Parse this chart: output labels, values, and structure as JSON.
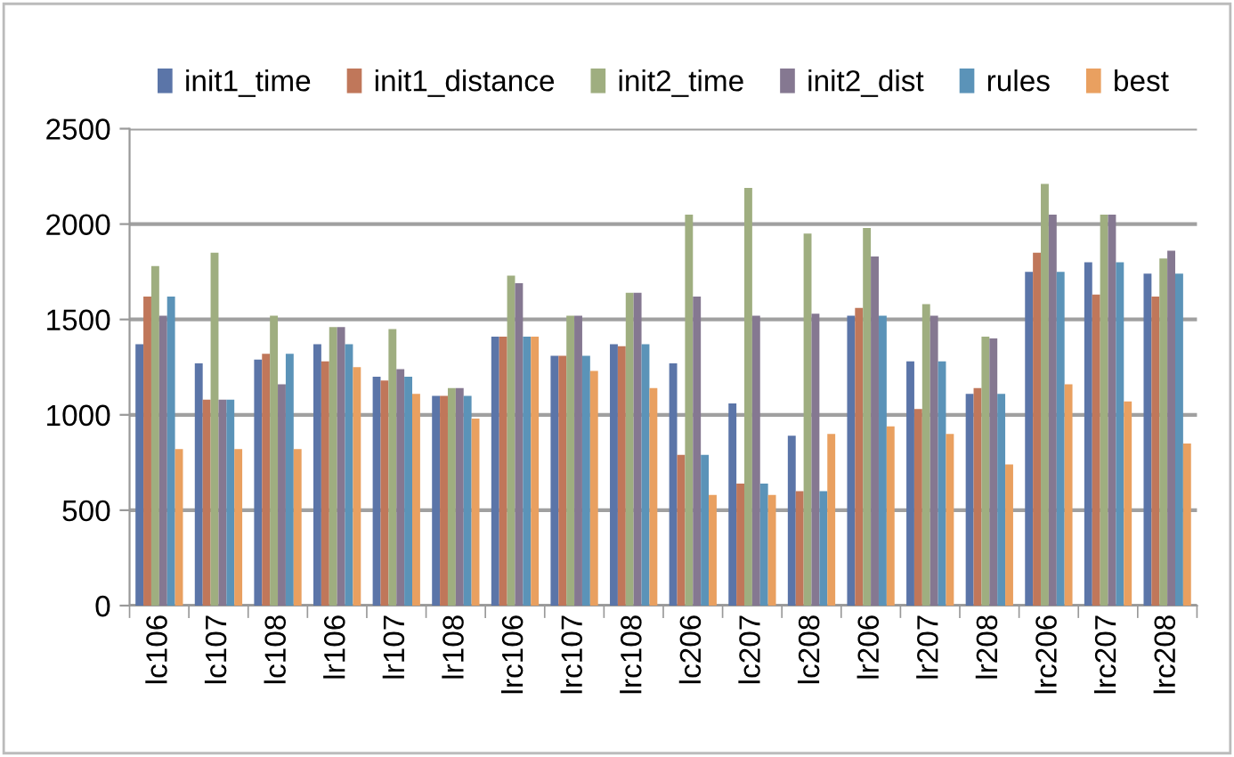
{
  "chart_data": {
    "type": "bar",
    "categories": [
      "lc106",
      "lc107",
      "lc108",
      "lr106",
      "lr107",
      "lr108",
      "lrc106",
      "lrc107",
      "lrc108",
      "lc206",
      "lc207",
      "lc208",
      "lr206",
      "lr207",
      "lr208",
      "lrc206",
      "lrc207",
      "lrc208"
    ],
    "series": [
      {
        "name": "init1_time",
        "color": "#5b75a8",
        "values": [
          1370,
          1270,
          1290,
          1370,
          1200,
          1100,
          1410,
          1310,
          1370,
          1270,
          1060,
          890,
          1520,
          1280,
          1110,
          1750,
          1800,
          1740
        ]
      },
      {
        "name": "init1_distance",
        "color": "#c0775a",
        "values": [
          1620,
          1080,
          1320,
          1280,
          1180,
          1100,
          1410,
          1310,
          1360,
          790,
          640,
          600,
          1560,
          1030,
          1140,
          1850,
          1630,
          1620
        ]
      },
      {
        "name": "init2_time",
        "color": "#9fae80",
        "values": [
          1780,
          1850,
          1520,
          1460,
          1450,
          1140,
          1730,
          1520,
          1640,
          2050,
          2190,
          1950,
          1980,
          1580,
          1410,
          2210,
          2050,
          1820
        ]
      },
      {
        "name": "init2_dist",
        "color": "#857891",
        "values": [
          1520,
          1080,
          1160,
          1460,
          1240,
          1140,
          1690,
          1520,
          1640,
          1620,
          1520,
          1530,
          1830,
          1520,
          1400,
          2050,
          2050,
          1860
        ]
      },
      {
        "name": "rules",
        "color": "#5b93b8",
        "values": [
          1620,
          1080,
          1320,
          1370,
          1200,
          1100,
          1410,
          1310,
          1370,
          790,
          640,
          600,
          1520,
          1280,
          1110,
          1750,
          1800,
          1740
        ]
      },
      {
        "name": "best",
        "color": "#e9a060",
        "values": [
          820,
          820,
          820,
          1250,
          1110,
          980,
          1410,
          1230,
          1140,
          580,
          580,
          900,
          940,
          900,
          740,
          1160,
          1070,
          850
        ]
      }
    ],
    "ylim": [
      0,
      2500
    ],
    "yticks": [
      0,
      500,
      1000,
      1500,
      2000,
      2500
    ],
    "grid": "y",
    "legend": "top"
  }
}
